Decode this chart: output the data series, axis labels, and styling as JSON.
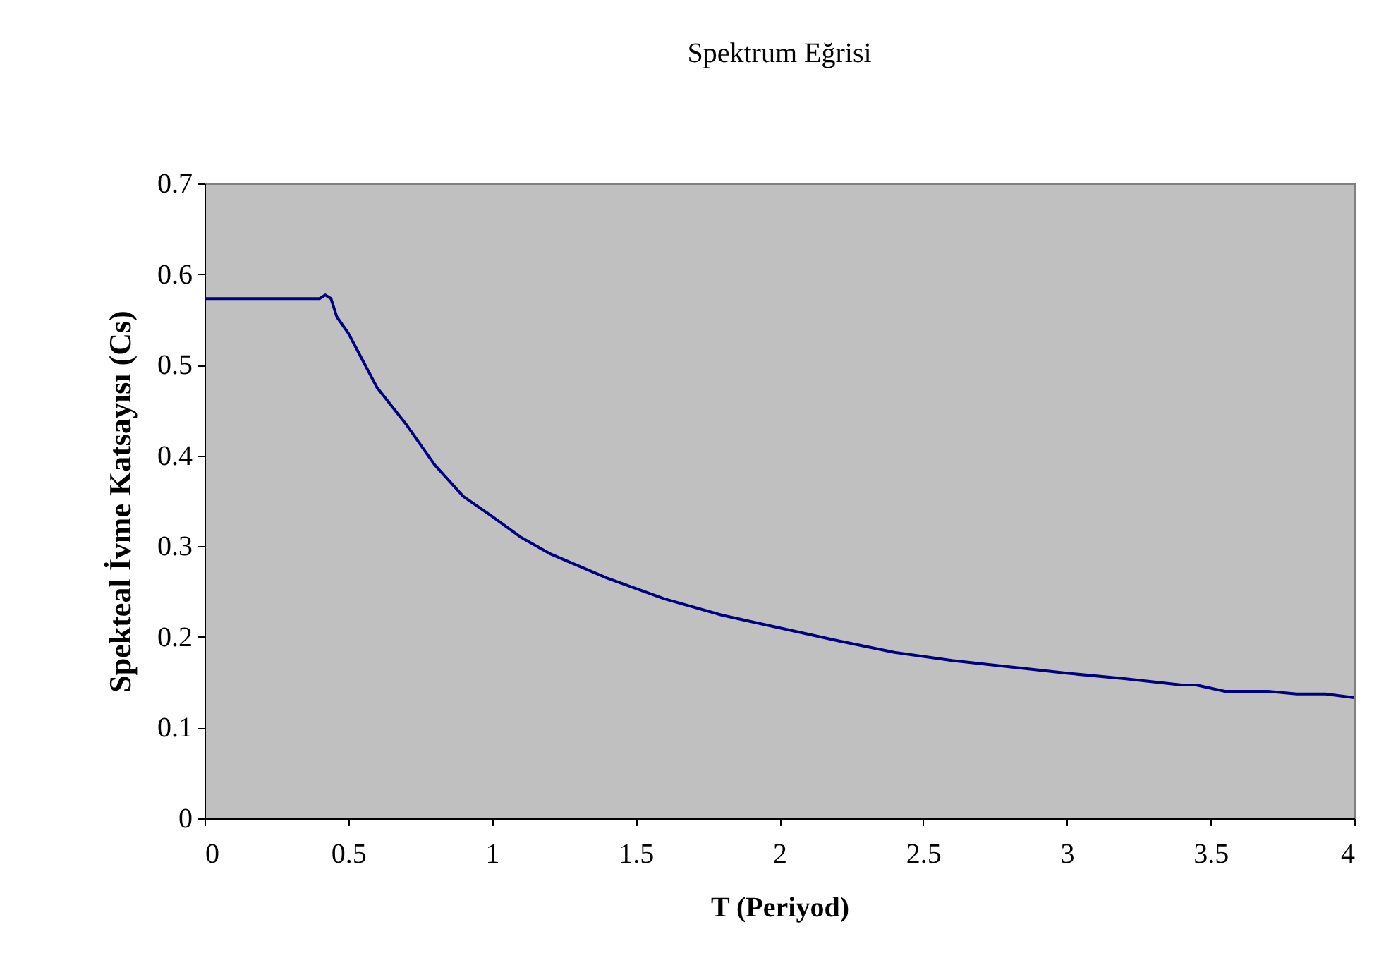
{
  "chart_data": {
    "type": "line",
    "title": "Spektrum Eğrisi",
    "xlabel": "T (Periyod)",
    "ylabel": "Spekteal İvme Katsayısı (Cs)",
    "x": [
      0,
      0.4,
      0.42,
      0.44,
      0.46,
      0.5,
      0.6,
      0.7,
      0.8,
      0.9,
      1.0,
      1.1,
      1.2,
      1.4,
      1.6,
      1.8,
      2.0,
      2.2,
      2.4,
      2.6,
      2.8,
      3.0,
      3.2,
      3.4,
      3.45,
      3.55,
      3.7,
      3.8,
      3.9,
      4.0
    ],
    "series": [
      {
        "color": "#000080",
        "values": [
          0.573,
          0.573,
          0.577,
          0.573,
          0.553,
          0.535,
          0.475,
          0.435,
          0.39,
          0.355,
          0.333,
          0.31,
          0.292,
          0.265,
          0.242,
          0.224,
          0.21,
          0.196,
          0.183,
          0.174,
          0.167,
          0.16,
          0.154,
          0.147,
          0.147,
          0.14,
          0.14,
          0.137,
          0.137,
          0.133
        ]
      }
    ],
    "xlim": [
      0,
      4
    ],
    "xticks": [
      0,
      0.5,
      1,
      1.5,
      2,
      2.5,
      3,
      3.5,
      4
    ],
    "ylim": [
      0,
      0.7
    ],
    "yticks": [
      0,
      0.1,
      0.2,
      0.3,
      0.4,
      0.5,
      0.6,
      0.7
    ],
    "grid": false,
    "marker": "none",
    "line_style": "solid"
  }
}
